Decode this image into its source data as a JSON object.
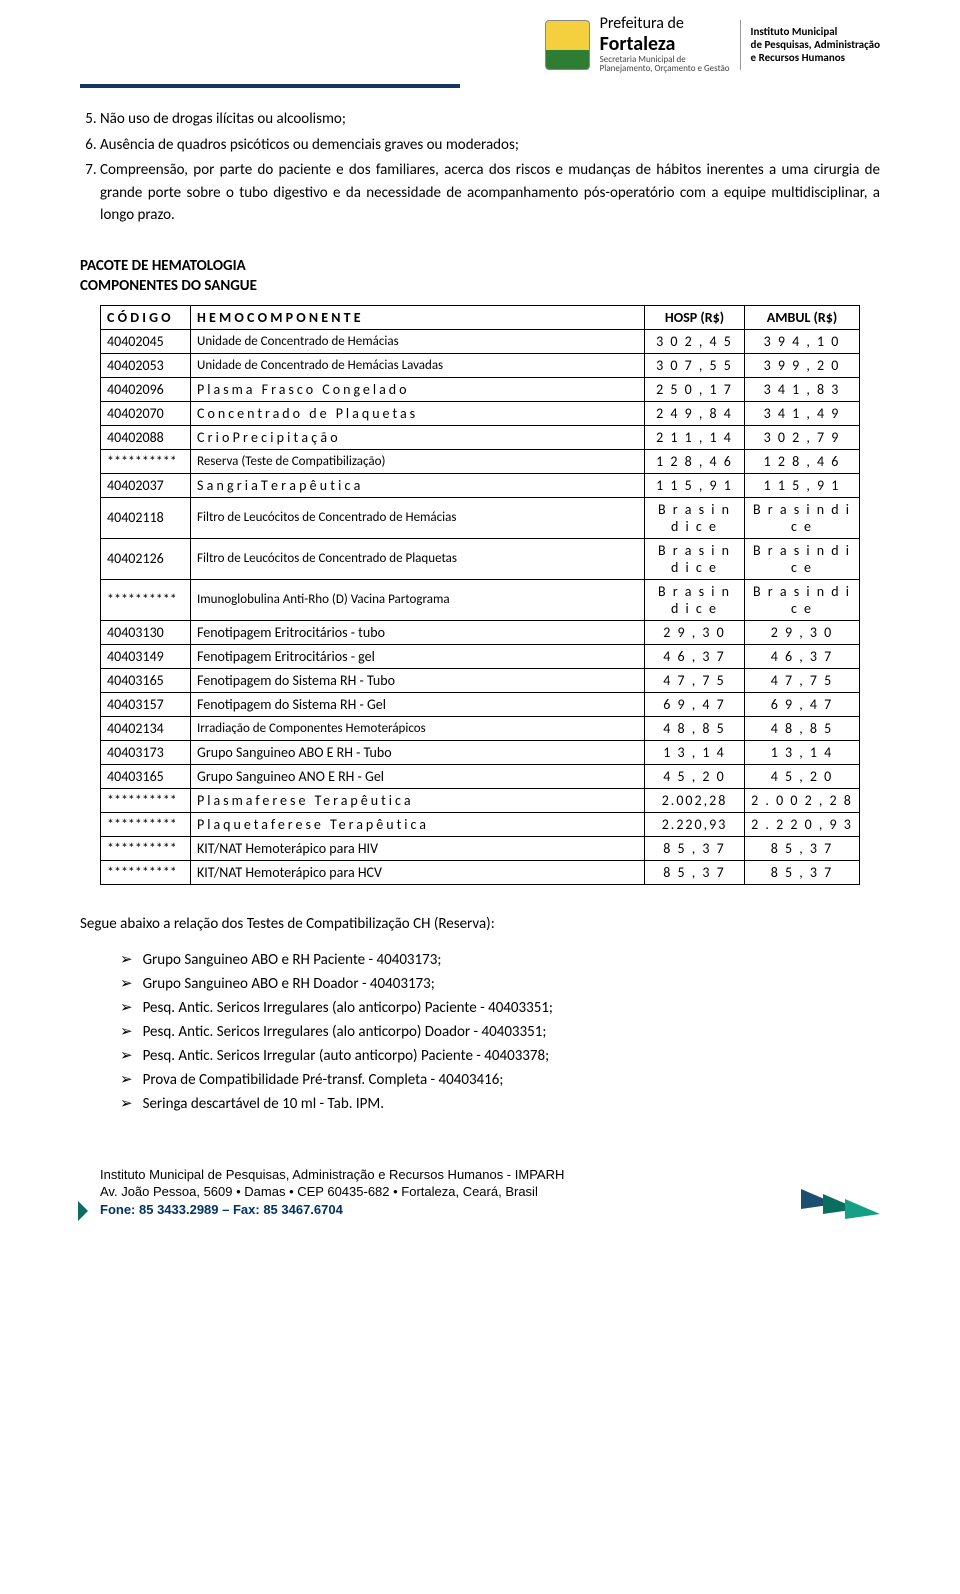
{
  "header": {
    "brand_line1": "Prefeitura de",
    "brand_line2": "Fortaleza",
    "brand_line3": "Secretaria Municipal de",
    "brand_line4": "Planejamento, Orçamento e Gestão",
    "inst_line1": "Instituto Municipal",
    "inst_line2": "de Pesquisas, Administração",
    "inst_line3": "e Recursos Humanos"
  },
  "numbered_items": [
    {
      "n": "5.",
      "text": "Não uso de drogas ilícitas ou alcoolismo;"
    },
    {
      "n": "6.",
      "text": "Ausência de quadros psicóticos ou demenciais graves ou moderados;"
    },
    {
      "n": "7.",
      "text": "Compreensão, por parte do paciente e dos familiares, acerca dos riscos e mudanças de hábitos inerentes a uma cirurgia de grande porte sobre o tubo digestivo e da necessidade de acompanhamento pós-operatório com a equipe multidisciplinar, a longo prazo."
    }
  ],
  "section_title": "PACOTE DE HEMATOLOGIA",
  "sub_title": "COMPONENTES DO SANGUE",
  "table": {
    "headers": [
      "C Ó D I G O",
      "H E M O C O M P O N E N T E",
      "HOSP (R$)",
      "AMBUL (R$)"
    ],
    "rows": [
      {
        "code": "40402045",
        "desc": "Unidade de Concentrado de Hemácias",
        "hosp": "3 0 2 , 4 5",
        "ambul": "3 9 4 , 1 0",
        "cls": "cond"
      },
      {
        "code": "40402053",
        "desc": "Unidade de Concentrado de Hemácias Lavadas",
        "hosp": "3 0 7 , 5 5",
        "ambul": "3 9 9 , 2 0",
        "cls": "cond"
      },
      {
        "code": "40402096",
        "desc": "Plasma Frasco Congelado",
        "hosp": "2 5 0 , 1 7",
        "ambul": "3 4 1 , 8 3",
        "cls": "spaced"
      },
      {
        "code": "40402070",
        "desc": "Concentrado de Plaquetas",
        "hosp": "2 4 9 , 8 4",
        "ambul": "3 4 1 , 4 9",
        "cls": "spaced"
      },
      {
        "code": "40402088",
        "desc": "C r i o   P r e c i p i t a ç ã o",
        "hosp": "2 1 1 , 1 4",
        "ambul": "3 0 2 , 7 9",
        "cls": ""
      },
      {
        "code": "**********",
        "desc": "Reserva (Teste de Compatibilização)",
        "hosp": "1 2 8 , 4 6",
        "ambul": "1 2 8 , 4 6",
        "cls": "cond"
      },
      {
        "code": "40402037",
        "desc": "S a n g r i a   T e r a p ê u t i c a",
        "hosp": "1 1 5 , 9 1",
        "ambul": "1 1 5 , 9 1",
        "cls": ""
      },
      {
        "code": "40402118",
        "desc": "Filtro de Leucócitos de Concentrado de Hemácias",
        "hosp": "B r a s i n d i c e",
        "ambul": "B r a s i n d i c e",
        "cls": "cond"
      },
      {
        "code": "40402126",
        "desc": "Filtro de Leucócitos de Concentrado de Plaquetas",
        "hosp": "B r a s i n d i c e",
        "ambul": "B r a s i n d i c e",
        "cls": "cond"
      },
      {
        "code": "**********",
        "desc": "Imunoglobulina Anti-Rho (D) Vacina Partograma",
        "hosp": "B r a s i n d i c e",
        "ambul": "B r a s i n d i c e",
        "cls": "cond"
      },
      {
        "code": "40403130",
        "desc": "Fenotipagem Eritrocitários - tubo",
        "hosp": "2 9 , 3 0",
        "ambul": "2 9 , 3 0",
        "cls": ""
      },
      {
        "code": "40403149",
        "desc": "Fenotipagem Eritrocitários - gel",
        "hosp": "4 6 , 3 7",
        "ambul": "4 6 , 3 7",
        "cls": ""
      },
      {
        "code": "40403165",
        "desc": "Fenotipagem do Sistema RH - Tubo",
        "hosp": "4 7 , 7 5",
        "ambul": "4 7 , 7 5",
        "cls": ""
      },
      {
        "code": "40403157",
        "desc": "Fenotipagem do Sistema RH - Gel",
        "hosp": "6 9 , 4 7",
        "ambul": "6 9 , 4 7",
        "cls": ""
      },
      {
        "code": "40402134",
        "desc": "Irradiação de Componentes Hemoterápicos",
        "hosp": "4 8 , 8 5",
        "ambul": "4 8 , 8 5",
        "cls": "cond"
      },
      {
        "code": "40403173",
        "desc": "Grupo Sanguineo ABO E RH - Tubo",
        "hosp": "1 3 , 1 4",
        "ambul": "1 3 , 1 4",
        "cls": ""
      },
      {
        "code": "40403165",
        "desc": "Grupo Sanguineo ANO E RH - Gel",
        "hosp": "4 5 , 2 0",
        "ambul": "4 5 , 2 0",
        "cls": ""
      },
      {
        "code": "**********",
        "desc": "Plasmaferese Terapêutica",
        "hosp": "2.002,28",
        "ambul": "2 . 0 0 2 , 2 8",
        "cls": "spaced"
      },
      {
        "code": "**********",
        "desc": "Plaquetaferese Terapêutica",
        "hosp": "2.220,93",
        "ambul": "2 . 2 2 0 , 9 3",
        "cls": "spaced"
      },
      {
        "code": "**********",
        "desc": "KIT/NAT Hemoterápico para HIV",
        "hosp": "8 5 , 3 7",
        "ambul": "8 5 , 3 7",
        "cls": ""
      },
      {
        "code": "**********",
        "desc": "KIT/NAT Hemoterápico para HCV",
        "hosp": "8 5 , 3 7",
        "ambul": "8 5 , 3 7",
        "cls": ""
      }
    ]
  },
  "follow_text": "Segue abaixo a relação dos Testes de Compatibilização CH (Reserva):",
  "arrow_items": [
    "Grupo Sanguineo ABO e RH Paciente - 40403173;",
    "Grupo Sanguineo ABO e RH Doador - 40403173;",
    "Pesq. Antic. Sericos Irregulares (alo anticorpo) Paciente - 40403351;",
    "Pesq. Antic. Sericos Irregulares (alo anticorpo) Doador - 40403351;",
    "Pesq. Antic. Sericos Irregular (auto anticorpo) Paciente - 40403378;",
    "Prova de Compatibilidade Pré-transf. Completa - 40403416;",
    "Seringa descartável de 10 ml - Tab. IPM."
  ],
  "footer": {
    "line1": "Instituto Municipal de Pesquisas, Administração e Recursos Humanos - IMPARH",
    "line2": "Av. João Pessoa, 5609 • Damas • CEP 60435-682 • Fortaleza, Ceará, Brasil",
    "line3": "Fone: 85 3433.2989 – Fax: 85 3467.6704"
  }
}
